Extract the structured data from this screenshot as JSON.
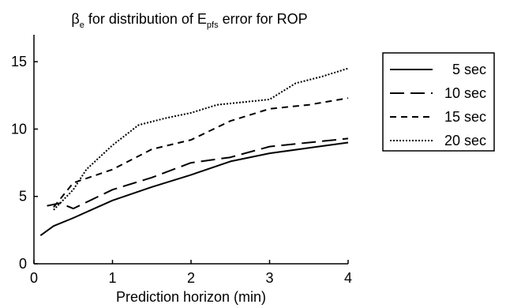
{
  "chart_data": {
    "type": "line",
    "title_parts": {
      "beta": "β",
      "beta_sub": "e",
      "middle": " for distribution of ",
      "e": "E",
      "e_sub": "pfs",
      "end": " error for ROP"
    },
    "xlabel": "Prediction horizon (min)",
    "ylabel": "",
    "xlim": [
      0,
      4
    ],
    "ylim": [
      0,
      17
    ],
    "xticks": [
      0,
      1,
      2,
      3,
      4
    ],
    "yticks": [
      0,
      5,
      10,
      15
    ],
    "grid": false,
    "legend_position": "outside-right",
    "series": [
      {
        "name": "5 sec",
        "dash": "solid",
        "color": "#000000",
        "x": [
          0.083,
          0.25,
          0.5,
          1.0,
          1.5,
          2.0,
          2.5,
          3.0,
          3.5,
          4.0
        ],
        "y": [
          2.1,
          2.8,
          3.4,
          4.7,
          5.7,
          6.6,
          7.6,
          8.2,
          8.6,
          9.0
        ]
      },
      {
        "name": "10 sec",
        "dash": "long",
        "color": "#000000",
        "x": [
          0.167,
          0.333,
          0.5,
          1.0,
          1.5,
          2.0,
          2.5,
          3.0,
          3.5,
          4.0
        ],
        "y": [
          4.3,
          4.5,
          4.1,
          5.5,
          6.4,
          7.5,
          7.9,
          8.7,
          9.0,
          9.3
        ]
      },
      {
        "name": "15 sec",
        "dash": "short",
        "color": "#000000",
        "x": [
          0.25,
          0.5,
          1.0,
          1.5,
          2.0,
          2.5,
          3.0,
          3.5,
          4.0
        ],
        "y": [
          4.2,
          6.0,
          7.0,
          8.5,
          9.2,
          10.6,
          11.5,
          11.8,
          12.3
        ]
      },
      {
        "name": "20 sec",
        "dash": "dotted",
        "color": "#000000",
        "x": [
          0.25,
          0.5,
          0.667,
          1.0,
          1.333,
          1.667,
          2.0,
          2.333,
          2.667,
          3.0,
          3.333,
          3.667,
          4.0
        ],
        "y": [
          4.0,
          5.5,
          7.0,
          8.8,
          10.3,
          10.8,
          11.2,
          11.8,
          12.0,
          12.2,
          13.4,
          13.9,
          14.5
        ]
      }
    ]
  }
}
